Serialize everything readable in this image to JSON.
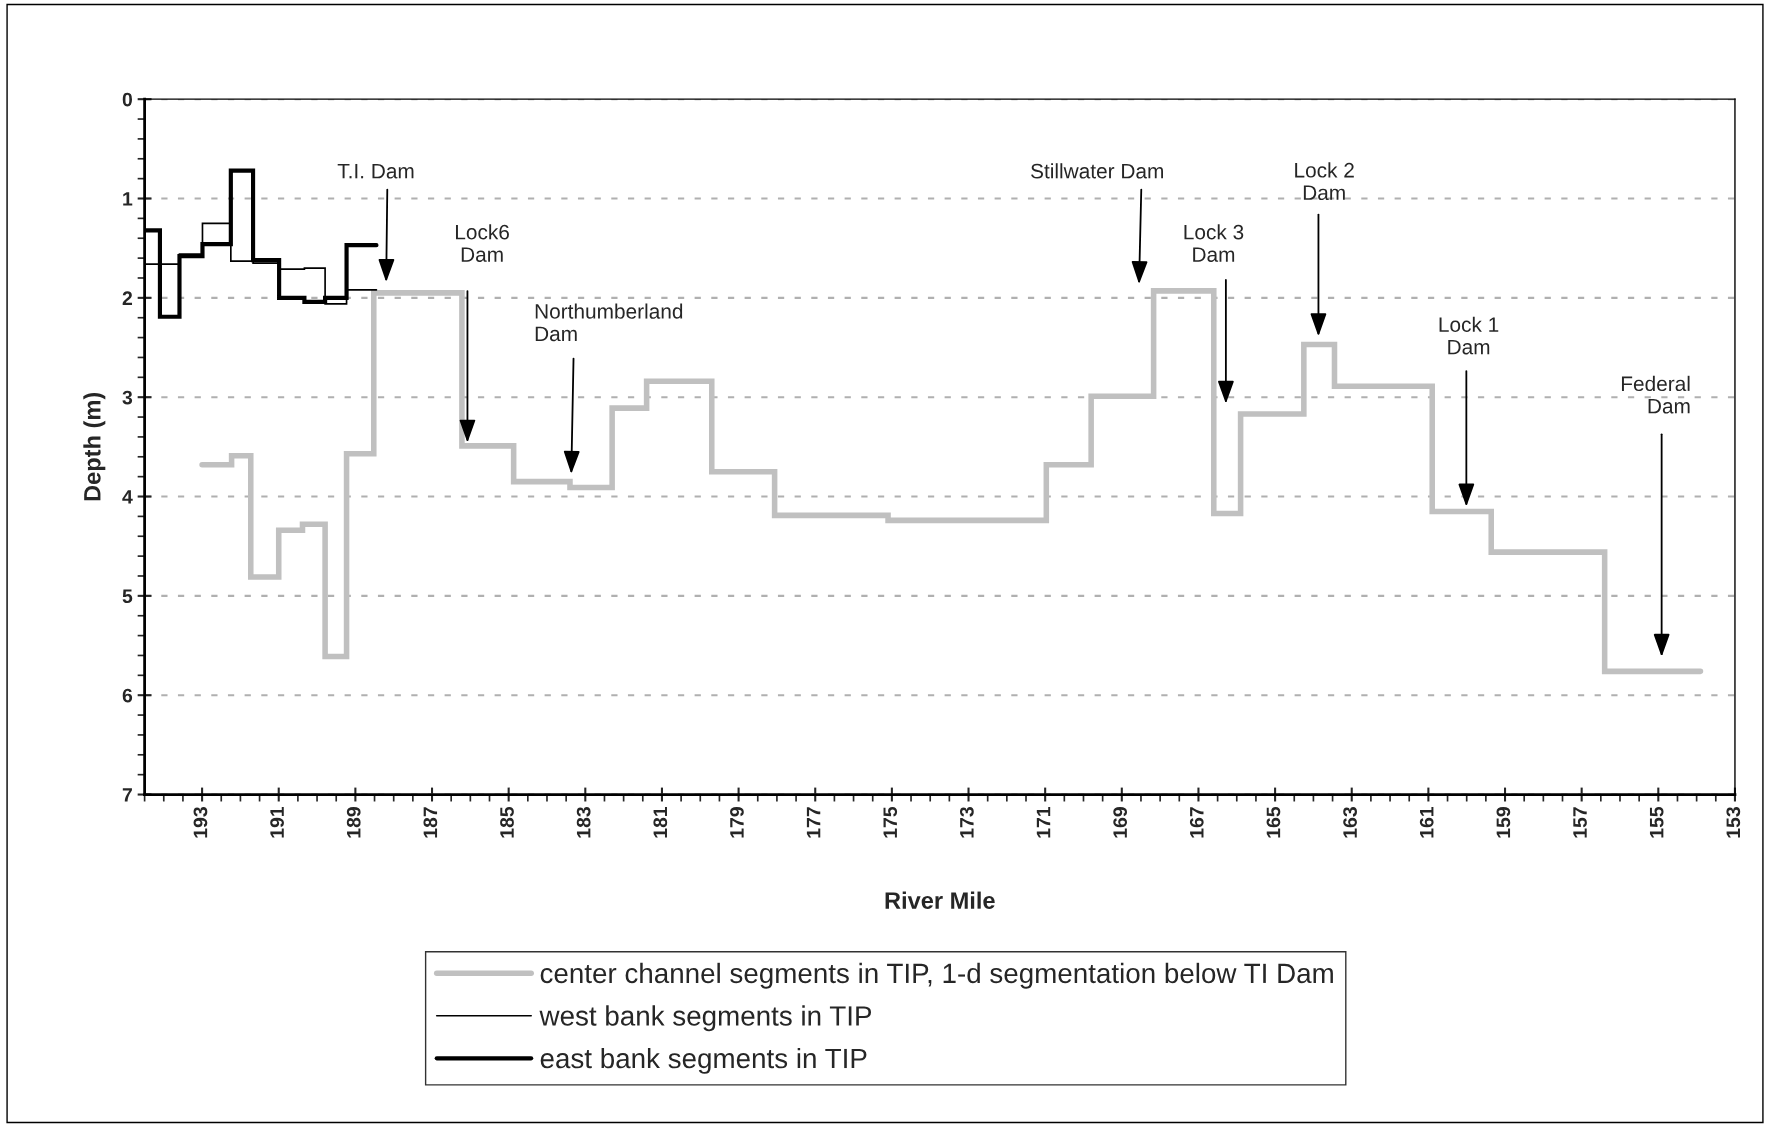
{
  "chart_data": {
    "type": "step",
    "xlabel": "River Mile",
    "ylabel": "Depth (m)",
    "xlim": [
      194.5,
      153
    ],
    "xticks": [
      193,
      191,
      189,
      187,
      185,
      183,
      181,
      179,
      177,
      175,
      173,
      171,
      169,
      167,
      165,
      163,
      161,
      159,
      157,
      155,
      153
    ],
    "ylim": [
      7,
      0
    ],
    "yticks": [
      0,
      1,
      2,
      3,
      4,
      5,
      6,
      7
    ],
    "grid": "y",
    "legend": "bottom",
    "marker": "none",
    "line_style": "solid",
    "series": [
      {
        "name": "center channel segments in TIP, 1-d segmentation below TI Dam",
        "color": "#c0c0c0",
        "x": [
          193.0,
          192.23,
          191.73,
          191.0,
          190.38,
          189.79,
          189.23,
          188.52,
          186.22,
          184.87,
          183.4,
          182.3,
          181.4,
          179.7,
          178.06,
          175.1,
          170.97,
          169.8,
          168.17,
          166.6,
          165.9,
          164.25,
          163.45,
          160.9,
          159.36,
          156.4,
          153.9
        ],
        "values": [
          3.68,
          3.59,
          4.81,
          4.34,
          4.28,
          5.61,
          3.57,
          1.95,
          3.49,
          3.85,
          3.91,
          3.11,
          2.84,
          3.75,
          4.19,
          4.24,
          3.68,
          2.99,
          1.93,
          4.17,
          3.17,
          2.47,
          2.89,
          4.15,
          4.56,
          5.76,
          5.76
        ]
      },
      {
        "name": "west bank segments in TIP",
        "color": "#000000",
        "x": [
          194.5,
          193.59,
          192.99,
          192.25,
          191.67,
          190.99,
          190.33,
          189.79,
          189.23,
          188.45
        ],
        "values": [
          1.66,
          1.56,
          1.25,
          1.63,
          1.65,
          1.71,
          1.7,
          2.06,
          1.92,
          1.92
        ]
      },
      {
        "name": "east bank segments in TIP",
        "color": "#000000",
        "x": [
          194.5,
          194.1,
          193.59,
          192.99,
          192.25,
          191.67,
          190.99,
          190.33,
          189.79,
          189.23,
          188.45
        ],
        "values": [
          1.32,
          2.19,
          1.58,
          1.46,
          0.72,
          1.62,
          2.0,
          2.04,
          2.0,
          1.47,
          1.47
        ]
      }
    ],
    "annotations": [
      "T.I. Dam",
      "Lock6\nDam",
      "Northumberland\nDam",
      "Stillwater Dam",
      "Lock 3\nDam",
      "Lock 2\nDam",
      "Lock 1\nDam",
      "Federal\nDam"
    ]
  }
}
